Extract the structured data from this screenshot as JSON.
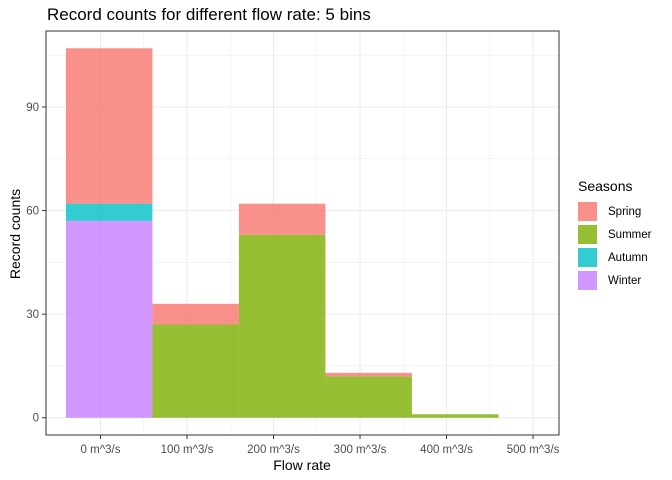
{
  "chart_data": {
    "type": "bar",
    "title": "Record counts for different flow rate: 5 bins",
    "xlabel": "Flow rate",
    "ylabel": "Record counts",
    "x_tick_labels": [
      "0 m^3/s",
      "100 m^3/s",
      "200 m^3/s",
      "300 m^3/s",
      "400 m^3/s",
      "500 m^3/s"
    ],
    "x_ticks": [
      0,
      100,
      200,
      300,
      400,
      500
    ],
    "xlim": [
      -63,
      530
    ],
    "y_ticks": [
      0,
      30,
      60,
      90
    ],
    "ylim": [
      -5,
      112
    ],
    "bins": [
      {
        "x_start": -40,
        "x_end": 60,
        "spring": 45,
        "summer": 0,
        "autumn": 5,
        "winter": 57
      },
      {
        "x_start": 60,
        "x_end": 160,
        "spring": 6,
        "summer": 27,
        "autumn": 0,
        "winter": 0
      },
      {
        "x_start": 160,
        "x_end": 260,
        "spring": 9,
        "summer": 53,
        "autumn": 0,
        "winter": 0
      },
      {
        "x_start": 260,
        "x_end": 360,
        "spring": 1,
        "summer": 12,
        "autumn": 0,
        "winter": 0
      },
      {
        "x_start": 360,
        "x_end": 460,
        "spring": 0,
        "summer": 1,
        "autumn": 0,
        "winter": 0
      }
    ],
    "stack_order": [
      "winter",
      "autumn",
      "summer",
      "spring"
    ],
    "legend": {
      "title": "Seasons",
      "position": "right",
      "items": [
        {
          "key": "spring",
          "label": "Spring",
          "color": "#F8766D"
        },
        {
          "key": "summer",
          "label": "Summer",
          "color": "#7CAE00"
        },
        {
          "key": "autumn",
          "label": "Autumn",
          "color": "#00BFC4"
        },
        {
          "key": "winter",
          "label": "Winter",
          "color": "#C77CFF"
        }
      ]
    },
    "grid": true,
    "bar_opacity": 0.8
  }
}
